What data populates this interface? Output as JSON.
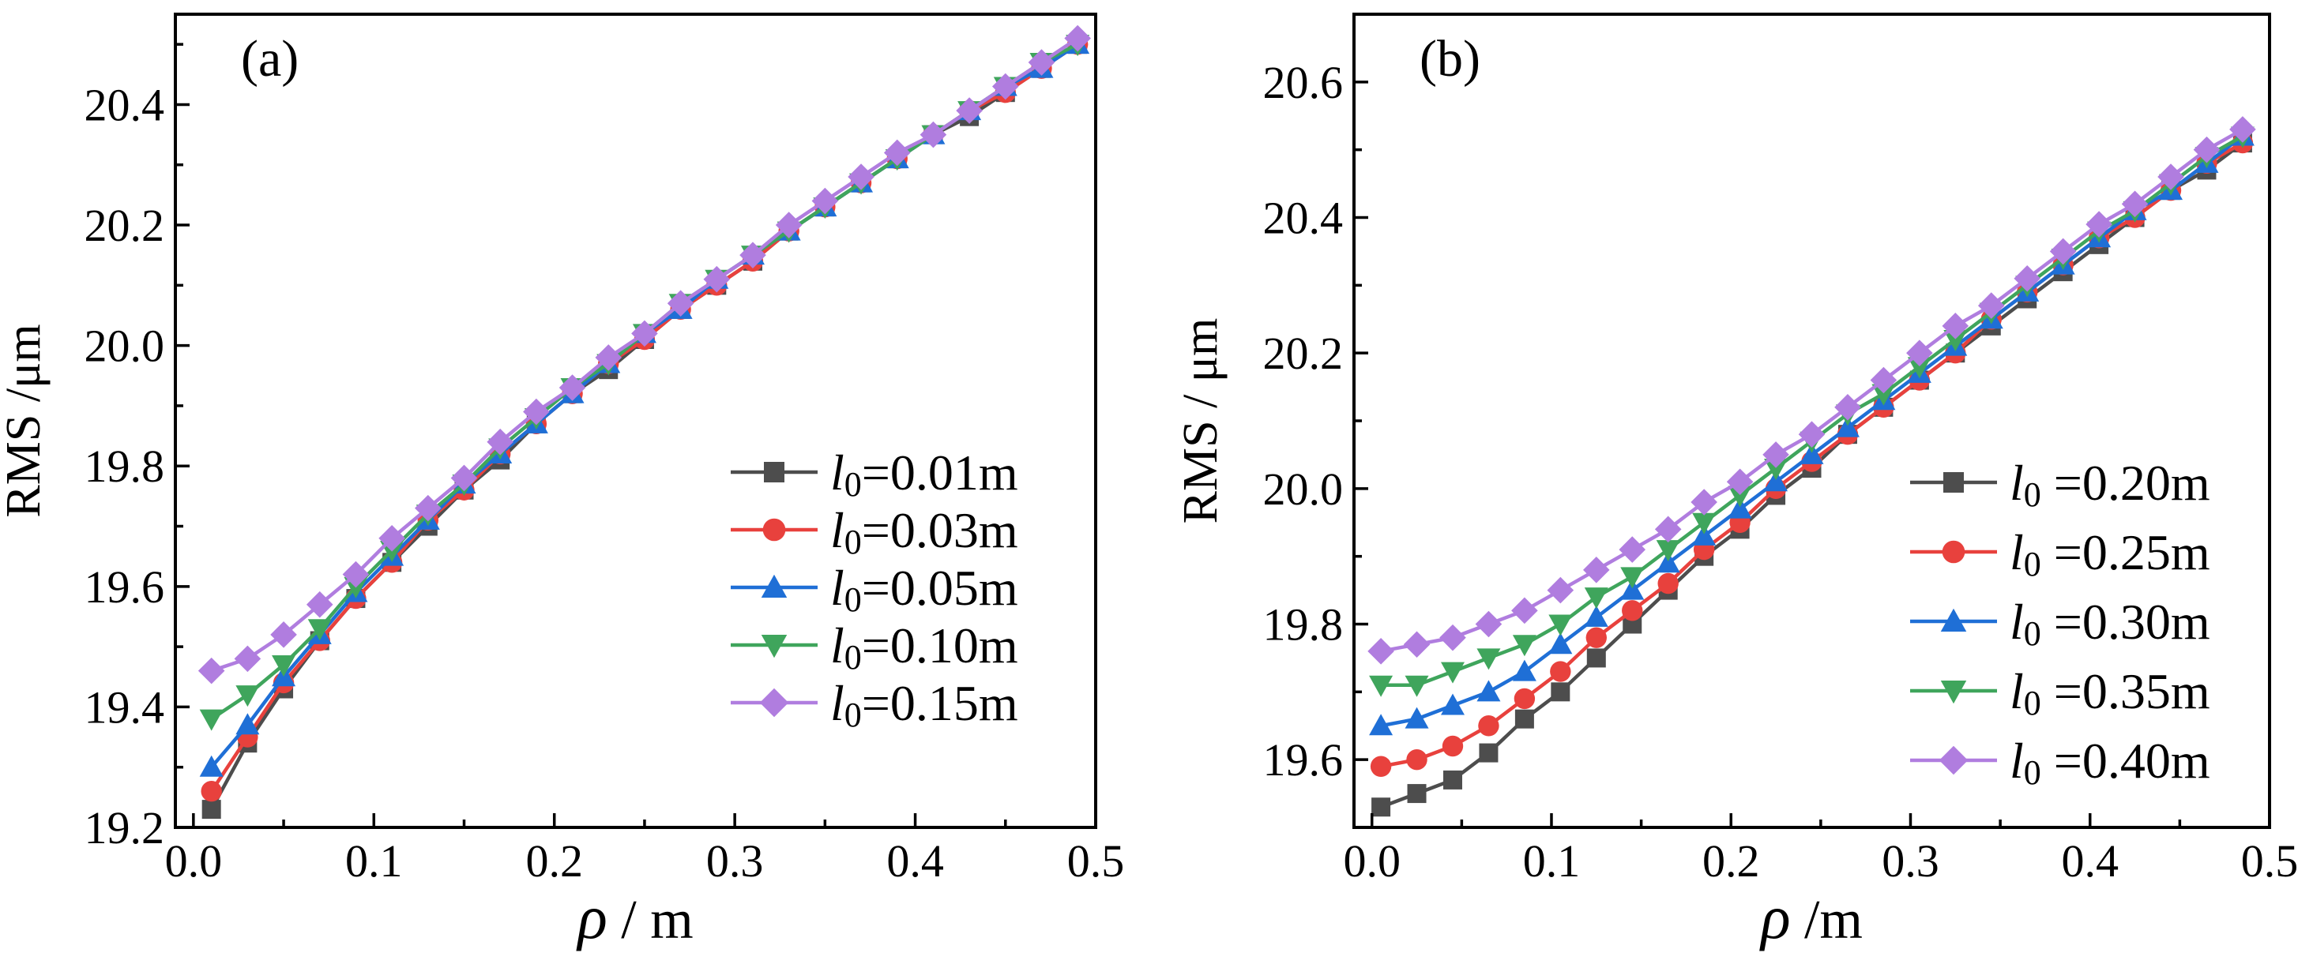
{
  "chart_data": [
    {
      "type": "line",
      "panel_label": "(a)",
      "xlabel_symbol": "ρ",
      "xlabel_unit": " / m",
      "ylabel": "RMS /μm",
      "xlim": [
        -0.01,
        0.5
      ],
      "ylim": [
        19.2,
        20.55
      ],
      "xticks": [
        0.0,
        0.1,
        0.2,
        0.3,
        0.4,
        0.5
      ],
      "xtick_labels": [
        "0.0",
        "0.1",
        "0.2",
        "0.3",
        "0.4",
        "0.5"
      ],
      "yticks": [
        19.2,
        19.4,
        19.6,
        19.8,
        20.0,
        20.2,
        20.4
      ],
      "ytick_labels": [
        "19.2",
        "19.4",
        "19.6",
        "19.8",
        "20.0",
        "20.2",
        "20.4"
      ],
      "legend_position": "bottom-right",
      "x": [
        0.01,
        0.03,
        0.05,
        0.07,
        0.09,
        0.11,
        0.13,
        0.15,
        0.17,
        0.19,
        0.21,
        0.23,
        0.25,
        0.27,
        0.29,
        0.31,
        0.33,
        0.35,
        0.37,
        0.39,
        0.41,
        0.43,
        0.45,
        0.47,
        0.49
      ],
      "series": [
        {
          "name_italic": "l",
          "name_sub": "0",
          "name_rest": "=0.01m",
          "color": "#4d4d4d",
          "marker": "square",
          "values": [
            19.23,
            19.34,
            19.43,
            19.51,
            19.58,
            19.64,
            19.7,
            19.76,
            19.81,
            19.87,
            19.92,
            19.96,
            20.01,
            20.06,
            20.1,
            20.14,
            20.19,
            20.23,
            20.27,
            20.31,
            20.35,
            20.38,
            20.42,
            20.46,
            20.5
          ]
        },
        {
          "name_italic": "l",
          "name_sub": "0",
          "name_rest": "=0.03m",
          "color": "#e8413d",
          "marker": "circle",
          "values": [
            19.26,
            19.35,
            19.44,
            19.51,
            19.58,
            19.64,
            19.71,
            19.76,
            19.82,
            19.87,
            19.92,
            19.97,
            20.01,
            20.06,
            20.1,
            20.14,
            20.19,
            20.23,
            20.27,
            20.31,
            20.35,
            20.39,
            20.42,
            20.46,
            20.5
          ]
        },
        {
          "name_italic": "l",
          "name_sub": "0",
          "name_rest": "=0.05m",
          "color": "#1f6fd6",
          "marker": "triangle-up",
          "values": [
            19.3,
            19.37,
            19.45,
            19.52,
            19.59,
            19.65,
            19.71,
            19.77,
            19.82,
            19.87,
            19.92,
            19.97,
            20.02,
            20.06,
            20.11,
            20.15,
            20.19,
            20.23,
            20.27,
            20.31,
            20.35,
            20.39,
            20.43,
            20.46,
            20.5
          ]
        },
        {
          "name_italic": "l",
          "name_sub": "0",
          "name_rest": "=0.10m",
          "color": "#3fa55c",
          "marker": "triangle-down",
          "values": [
            19.38,
            19.42,
            19.47,
            19.53,
            19.6,
            19.66,
            19.72,
            19.77,
            19.83,
            19.88,
            19.93,
            19.97,
            20.02,
            20.07,
            20.11,
            20.15,
            20.19,
            20.23,
            20.27,
            20.31,
            20.35,
            20.39,
            20.43,
            20.47,
            20.5
          ]
        },
        {
          "name_italic": "l",
          "name_sub": "0",
          "name_rest": "=0.15m",
          "color": "#b07ddf",
          "marker": "diamond",
          "values": [
            19.46,
            19.48,
            19.52,
            19.57,
            19.62,
            19.68,
            19.73,
            19.78,
            19.84,
            19.89,
            19.93,
            19.98,
            20.02,
            20.07,
            20.11,
            20.15,
            20.2,
            20.24,
            20.28,
            20.32,
            20.35,
            20.39,
            20.43,
            20.47,
            20.51
          ]
        }
      ]
    },
    {
      "type": "line",
      "panel_label": "(b)",
      "xlabel_symbol": "ρ",
      "xlabel_unit": " /m",
      "ylabel": "RMS / μm",
      "xlim": [
        -0.01,
        0.5
      ],
      "ylim": [
        19.5,
        20.7
      ],
      "xticks": [
        0.0,
        0.1,
        0.2,
        0.3,
        0.4,
        0.5
      ],
      "xtick_labels": [
        "0.0",
        "0.1",
        "0.2",
        "0.3",
        "0.4",
        "0.5"
      ],
      "yticks": [
        19.6,
        19.8,
        20.0,
        20.2,
        20.4,
        20.6
      ],
      "ytick_labels": [
        "19.6",
        "19.8",
        "20.0",
        "20.2",
        "20.4",
        "20.6"
      ],
      "legend_position": "bottom-right",
      "x": [
        0.005,
        0.025,
        0.045,
        0.065,
        0.085,
        0.105,
        0.125,
        0.145,
        0.165,
        0.185,
        0.205,
        0.225,
        0.245,
        0.265,
        0.285,
        0.305,
        0.325,
        0.345,
        0.365,
        0.385,
        0.405,
        0.425,
        0.445,
        0.465,
        0.485
      ],
      "series": [
        {
          "name_italic": "l",
          "name_sub": "0",
          "name_rest": " =0.20m",
          "color": "#4d4d4d",
          "marker": "square",
          "values": [
            19.53,
            19.55,
            19.57,
            19.61,
            19.66,
            19.7,
            19.75,
            19.8,
            19.85,
            19.9,
            19.94,
            19.99,
            20.03,
            20.08,
            20.12,
            20.16,
            20.2,
            20.24,
            20.28,
            20.32,
            20.36,
            20.4,
            20.44,
            20.47,
            20.51
          ]
        },
        {
          "name_italic": "l",
          "name_sub": "0",
          "name_rest": " =0.25m",
          "color": "#e8413d",
          "marker": "circle",
          "values": [
            19.59,
            19.6,
            19.62,
            19.65,
            19.69,
            19.73,
            19.78,
            19.82,
            19.86,
            19.91,
            19.95,
            20.0,
            20.04,
            20.08,
            20.12,
            20.16,
            20.2,
            20.25,
            20.29,
            20.33,
            20.37,
            20.4,
            20.44,
            20.48,
            20.51
          ]
        },
        {
          "name_italic": "l",
          "name_sub": "0",
          "name_rest": " =0.30m",
          "color": "#1f6fd6",
          "marker": "triangle-up",
          "values": [
            19.65,
            19.66,
            19.68,
            19.7,
            19.73,
            19.77,
            19.81,
            19.85,
            19.89,
            19.93,
            19.97,
            20.01,
            20.05,
            20.09,
            20.13,
            20.17,
            20.21,
            20.25,
            20.29,
            20.33,
            20.37,
            20.41,
            20.44,
            20.48,
            20.52
          ]
        },
        {
          "name_italic": "l",
          "name_sub": "0",
          "name_rest": " =0.35m",
          "color": "#3fa55c",
          "marker": "triangle-down",
          "values": [
            19.71,
            19.71,
            19.73,
            19.75,
            19.77,
            19.8,
            19.84,
            19.87,
            19.91,
            19.95,
            19.99,
            20.03,
            20.07,
            20.11,
            20.14,
            20.18,
            20.22,
            20.26,
            20.3,
            20.34,
            20.38,
            20.41,
            20.45,
            20.49,
            20.52
          ]
        },
        {
          "name_italic": "l",
          "name_sub": "0",
          "name_rest": " =0.40m",
          "color": "#b07ddf",
          "marker": "diamond",
          "values": [
            19.76,
            19.77,
            19.78,
            19.8,
            19.82,
            19.85,
            19.88,
            19.91,
            19.94,
            19.98,
            20.01,
            20.05,
            20.08,
            20.12,
            20.16,
            20.2,
            20.24,
            20.27,
            20.31,
            20.35,
            20.39,
            20.42,
            20.46,
            20.5,
            20.53
          ]
        }
      ]
    }
  ]
}
